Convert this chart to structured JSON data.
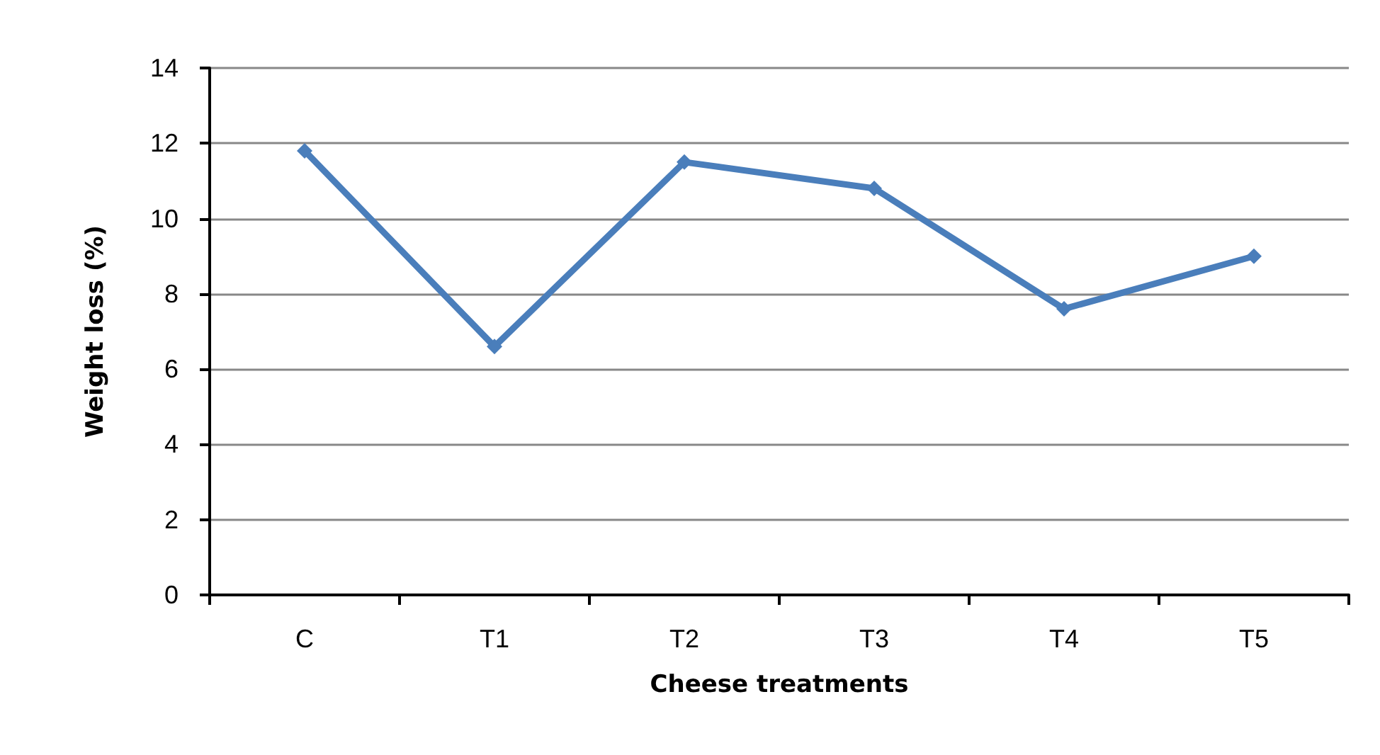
{
  "chart_data": {
    "type": "line",
    "xlabel": "Cheese treatments",
    "ylabel": "Weight loss (%)",
    "categories": [
      "C",
      "T1",
      "T2",
      "T3",
      "T4",
      "T5"
    ],
    "series": [
      {
        "color": "#4a7ebb",
        "values": [
          11.8,
          6.6,
          11.5,
          10.8,
          7.6,
          9.0
        ]
      }
    ],
    "ylim": [
      0,
      14
    ],
    "yticks": [
      0,
      2,
      4,
      6,
      8,
      10,
      12,
      14
    ],
    "grid": "y",
    "marker": "diamond",
    "line_style": "solid"
  }
}
